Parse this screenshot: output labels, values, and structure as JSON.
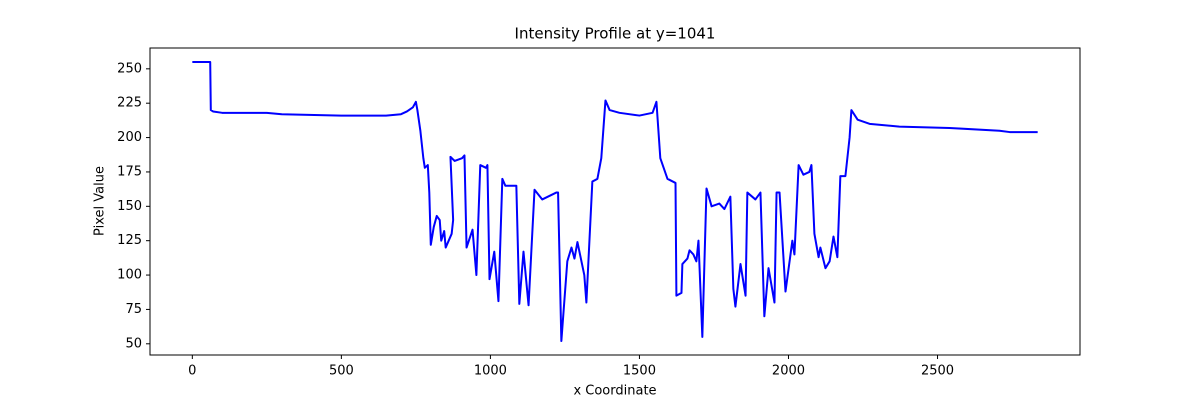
{
  "chart_data": {
    "type": "line",
    "title": "Intensity Profile at y=1041",
    "x_label": "x Coordinate",
    "y_label": "Pixel Value",
    "color": "#0000ff",
    "x": [
      0,
      60,
      62,
      70,
      100,
      250,
      300,
      500,
      650,
      700,
      720,
      740,
      750,
      755,
      765,
      775,
      780,
      790,
      795,
      800,
      810,
      820,
      830,
      835,
      845,
      850,
      860,
      870,
      875,
      866,
      880,
      905,
      913,
      920,
      940,
      953,
      966,
      985,
      990,
      997,
      1013,
      1027,
      1040,
      1050,
      1087,
      1097,
      1111,
      1128,
      1148,
      1174,
      1221,
      1227,
      1238,
      1258,
      1272,
      1282,
      1292,
      1315,
      1322,
      1342,
      1359,
      1372,
      1386,
      1400,
      1433,
      1500,
      1544,
      1557,
      1570,
      1594,
      1621,
      1624,
      1641,
      1644,
      1661,
      1668,
      1681,
      1691,
      1698,
      1711,
      1725,
      1742,
      1768,
      1785,
      1805,
      1815,
      1822,
      1839,
      1856,
      1862,
      1889,
      1906,
      1919,
      1933,
      1953,
      1960,
      1970,
      1990,
      2013,
      2020,
      2034,
      2050,
      2070,
      2077,
      2087,
      2101,
      2107,
      2124,
      2138,
      2151,
      2164,
      2174,
      2191,
      2205,
      2211,
      2232,
      2272,
      2372,
      2540,
      2708,
      2742,
      2836
    ],
    "values": [
      255,
      255,
      220,
      219,
      218,
      218,
      217,
      216,
      216,
      217,
      219,
      222,
      226,
      220,
      205,
      185,
      178,
      180,
      160,
      122,
      135,
      143,
      140,
      125,
      132,
      120,
      125,
      130,
      140,
      186,
      183,
      185,
      187,
      120,
      133,
      100,
      180,
      178,
      180,
      97,
      117,
      81,
      170,
      165,
      165,
      79,
      117,
      78,
      162,
      155,
      160,
      160,
      52,
      110,
      120,
      112,
      124,
      100,
      80,
      168,
      170,
      185,
      227,
      220,
      218,
      216,
      218,
      226,
      185,
      170,
      167,
      85,
      87,
      108,
      112,
      118,
      115,
      110,
      125,
      55,
      163,
      150,
      152,
      148,
      157,
      90,
      77,
      108,
      85,
      160,
      155,
      160,
      70,
      105,
      80,
      160,
      160,
      88,
      125,
      115,
      180,
      173,
      175,
      180,
      130,
      113,
      120,
      105,
      110,
      128,
      113,
      172,
      172,
      200,
      220,
      213,
      210,
      208,
      207,
      205,
      204,
      204
    ],
    "xlim": [
      -142,
      2978
    ],
    "ylim": [
      41.85,
      265.15
    ],
    "xticks": [
      0,
      500,
      1000,
      1500,
      2000,
      2500
    ],
    "yticks": [
      50,
      75,
      100,
      125,
      150,
      175,
      200,
      225,
      250
    ]
  }
}
